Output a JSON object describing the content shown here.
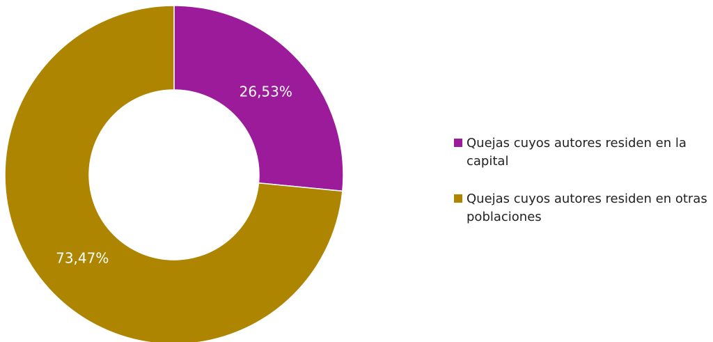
{
  "chart_data": {
    "type": "pie",
    "variant": "donut",
    "title": "",
    "legend_position": "right",
    "slices": [
      {
        "label": "Quejas cuyos autores residen en la capital",
        "value": 26.53,
        "display": "26,53%",
        "color": "#9b1b9b"
      },
      {
        "label": "Quejas cuyos autores residen en otras poblaciones",
        "value": 73.47,
        "display": "73,47%",
        "color": "#ad8500"
      }
    ]
  }
}
